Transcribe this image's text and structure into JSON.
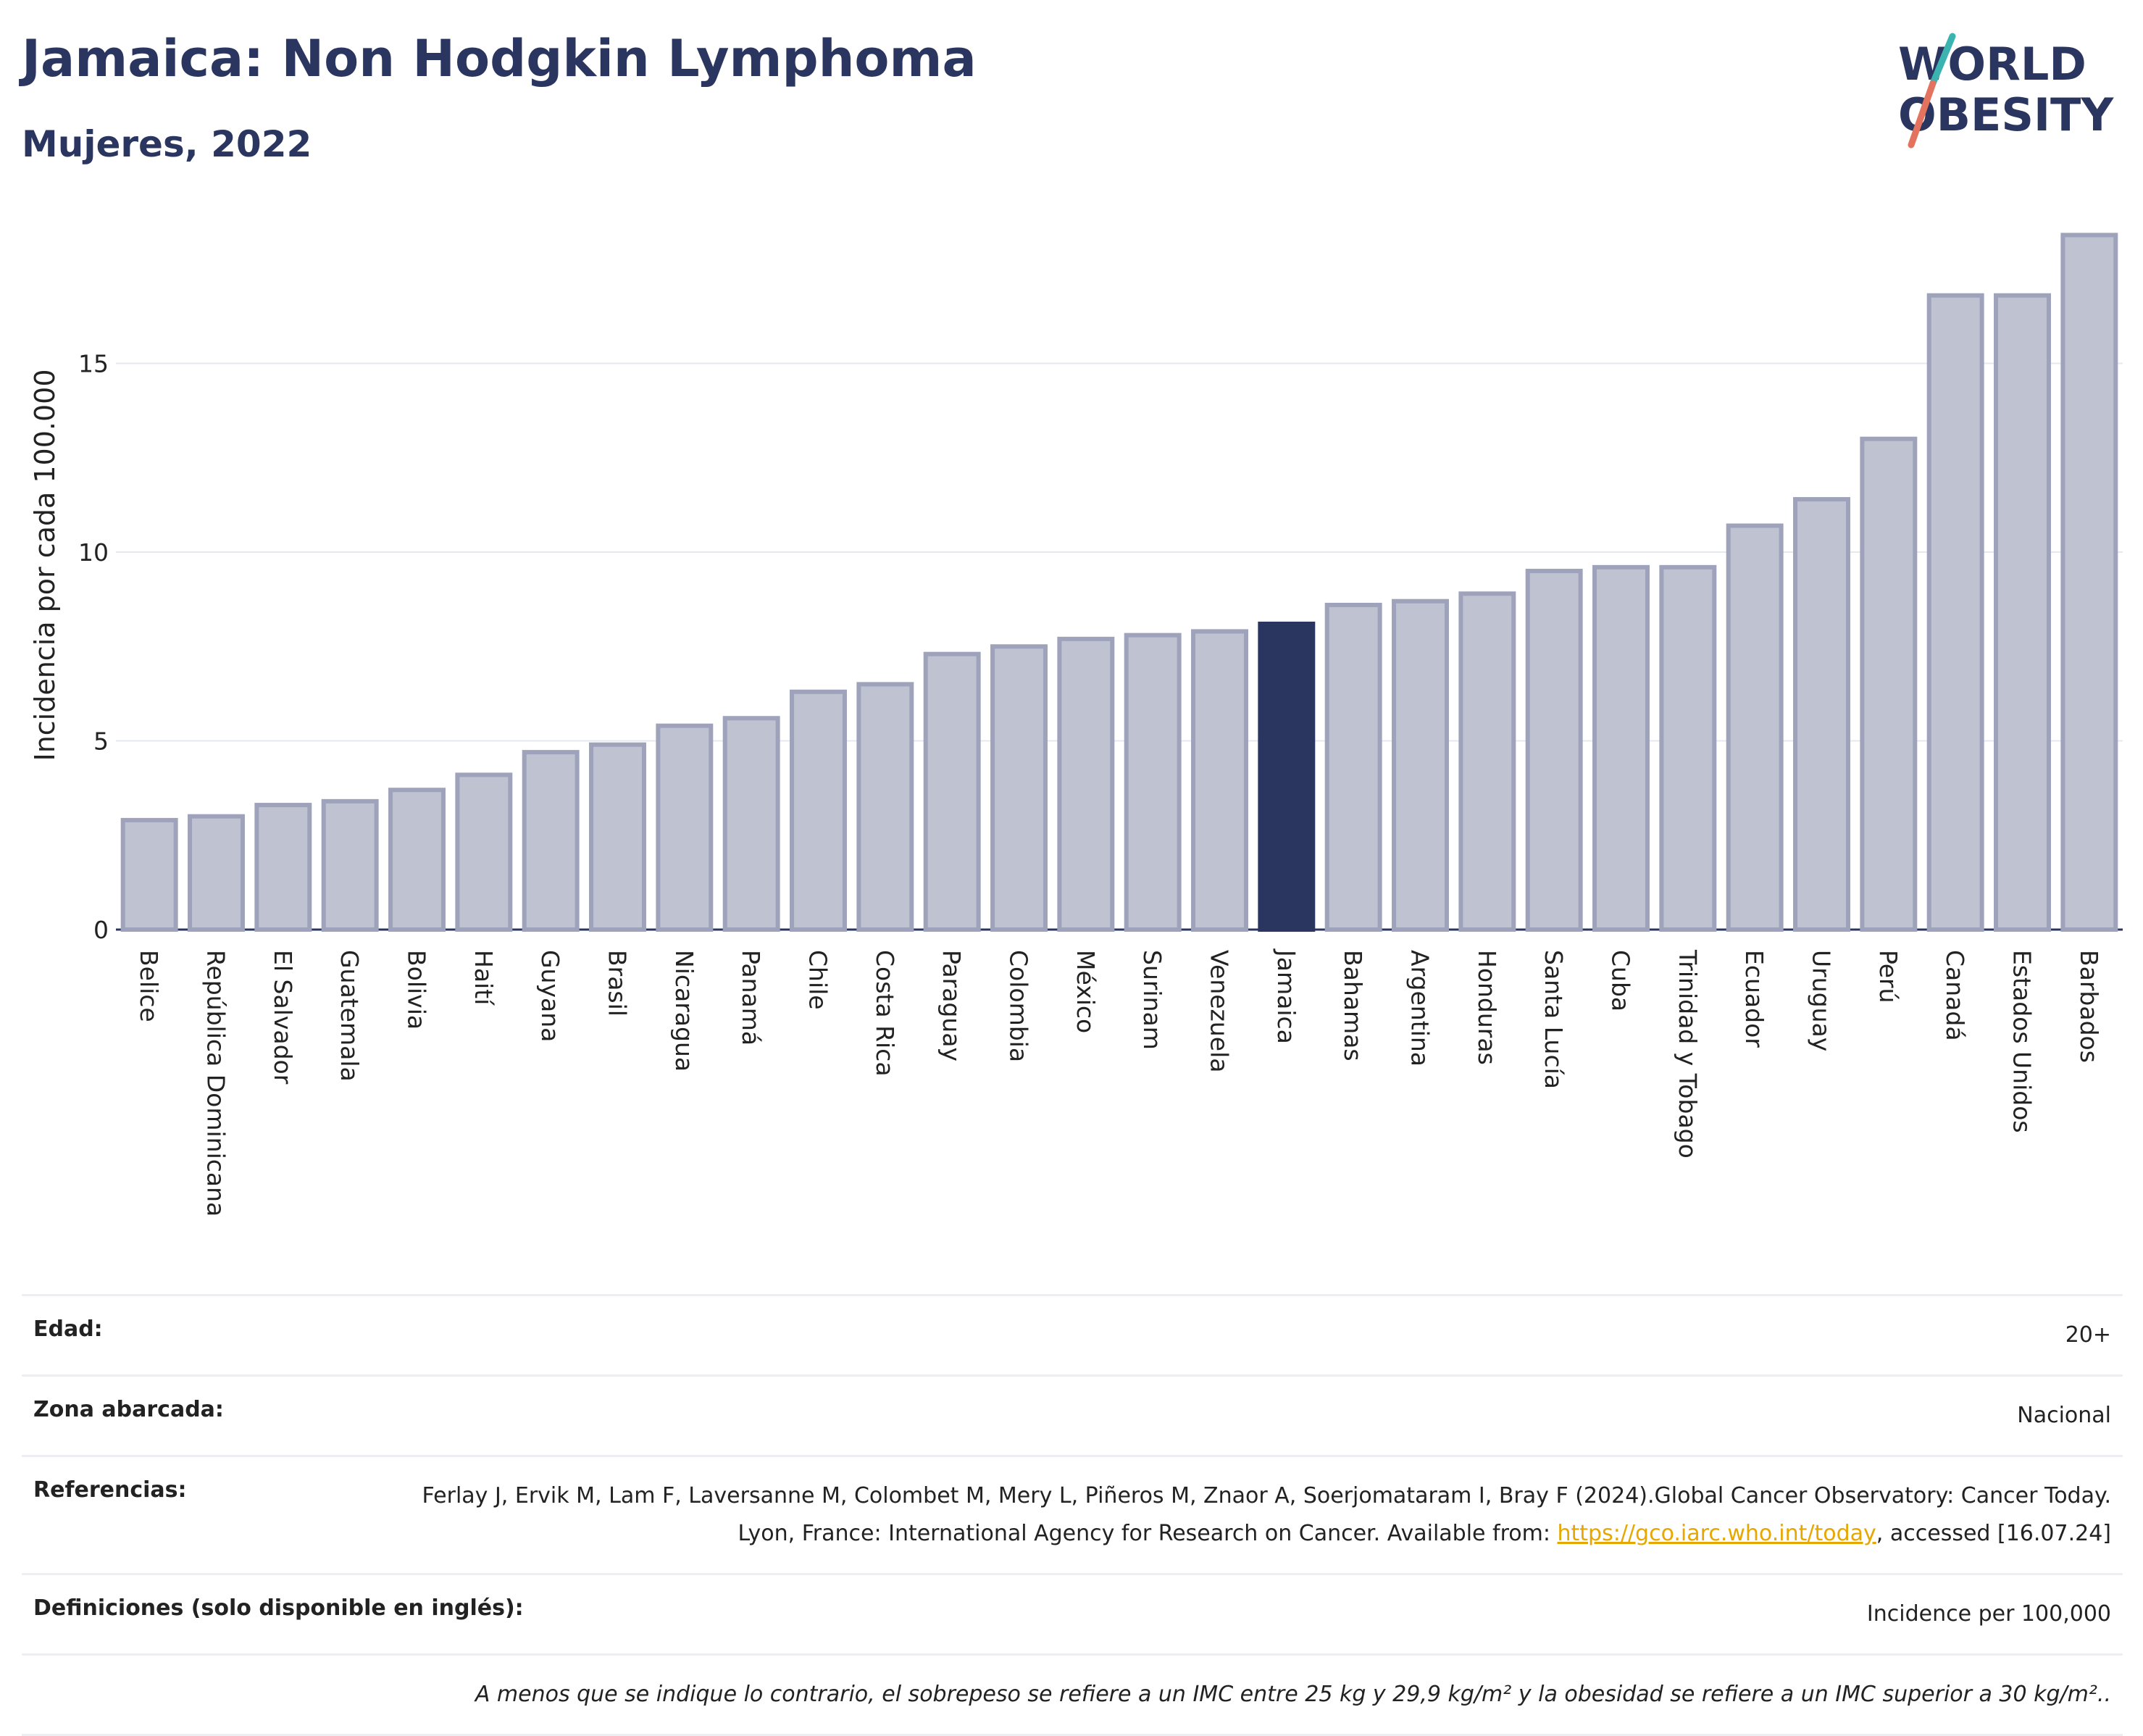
{
  "header": {
    "title": "Jamaica: Non Hodgkin Lymphoma",
    "subtitle": "Mujeres, 2022"
  },
  "logo": {
    "line1": "WORLD",
    "line2": "OBESITY"
  },
  "colors": {
    "bar": "#bfc2d0",
    "bar_stroke": "#9ea2ba",
    "highlight": "#2a3560",
    "accent_teal": "#3bb3b0",
    "accent_coral": "#e3735e"
  },
  "chart_data": {
    "type": "bar",
    "title": "Jamaica: Non Hodgkin Lymphoma",
    "subtitle": "Mujeres, 2022",
    "ylabel": "Incidencia por cada 100.000",
    "ylim": [
      0,
      18.8
    ],
    "yticks": [
      0,
      5,
      10,
      15
    ],
    "grid": true,
    "highlight": "Jamaica",
    "categories": [
      "Belice",
      "República Dominicana",
      "El Salvador",
      "Guatemala",
      "Bolivia",
      "Haití",
      "Guyana",
      "Brasil",
      "Nicaragua",
      "Panamá",
      "Chile",
      "Costa Rica",
      "Paraguay",
      "Colombia",
      "México",
      "Surinam",
      "Venezuela",
      "Jamaica",
      "Bahamas",
      "Argentina",
      "Honduras",
      "Santa Lucía",
      "Cuba",
      "Trinidad y Tobago",
      "Ecuador",
      "Uruguay",
      "Perú",
      "Canadá",
      "Estados Unidos",
      "Barbados"
    ],
    "values": [
      2.9,
      3.0,
      3.3,
      3.4,
      3.7,
      4.1,
      4.7,
      4.9,
      5.4,
      5.6,
      6.3,
      6.5,
      7.3,
      7.5,
      7.7,
      7.8,
      7.9,
      8.1,
      8.6,
      8.7,
      8.9,
      9.5,
      9.6,
      9.6,
      10.7,
      11.4,
      13.0,
      16.8,
      16.8,
      18.4
    ]
  },
  "info": {
    "edad_label": "Edad:",
    "edad_value": "20+",
    "zona_label": "Zona abarcada:",
    "zona_value": "Nacional",
    "ref_label": "Referencias:",
    "ref_text_1": "Ferlay J, Ervik M, Lam F, Laversanne M, Colombet M, Mery L, Piñeros M, Znaor A, Soerjomataram I, Bray F (2024).Global Cancer Observatory: Cancer Today. Lyon, France: International Agency for Research on Cancer. Available from: ",
    "ref_link": "https://gco.iarc.who.int/today",
    "ref_text_2": ", accessed [16.07.24]",
    "def_label": "Definiciones (solo disponible en inglés):",
    "def_value": "Incidence per 100,000",
    "note": "A menos que se indique lo contrario, el sobrepeso se refiere a un IMC entre 25 kg y 29,9 kg/m² y la obesidad se refiere a un IMC superior a 30 kg/m².."
  }
}
